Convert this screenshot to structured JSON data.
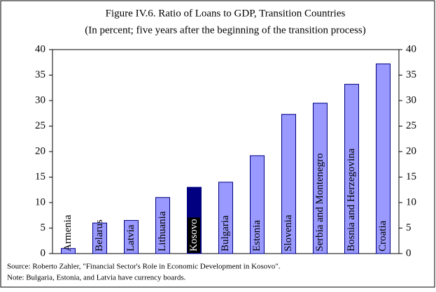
{
  "chart_data": {
    "type": "bar",
    "title": "Figure IV.6. Ratio of Loans to GDP, Transition Countries",
    "subtitle": "(In percent; five years after the beginning of the transition process)",
    "categories": [
      "Armenia",
      "Belarus",
      "Latvia",
      "Lithuania",
      "Kosovo",
      "Bulgaria",
      "Estonia",
      "Slovenia",
      "Serbia and Montenegro",
      "Bosnia and Herzegovina",
      "Croatia"
    ],
    "values": [
      1,
      6,
      6.5,
      11,
      13,
      14,
      19.2,
      27.3,
      29.5,
      33.2,
      37.2
    ],
    "colors": [
      "#9999ff",
      "#9999ff",
      "#9999ff",
      "#9999ff",
      "#000080",
      "#9999ff",
      "#9999ff",
      "#9999ff",
      "#9999ff",
      "#9999ff",
      "#9999ff"
    ],
    "ylim": [
      0,
      40
    ],
    "yticks": [
      0,
      5,
      10,
      15,
      20,
      25,
      30,
      35,
      40
    ],
    "y2lim": [
      0,
      40
    ],
    "y2ticks": [
      0,
      5,
      10,
      15,
      20,
      25,
      30,
      35,
      40
    ],
    "grid": false,
    "source": "Source: Roberto Zahler, \"Financial Sector's Role in Economic Development in Kosovo\".",
    "note": "Note: Bulgaria, Estonia, and Latvia have currency boards."
  }
}
